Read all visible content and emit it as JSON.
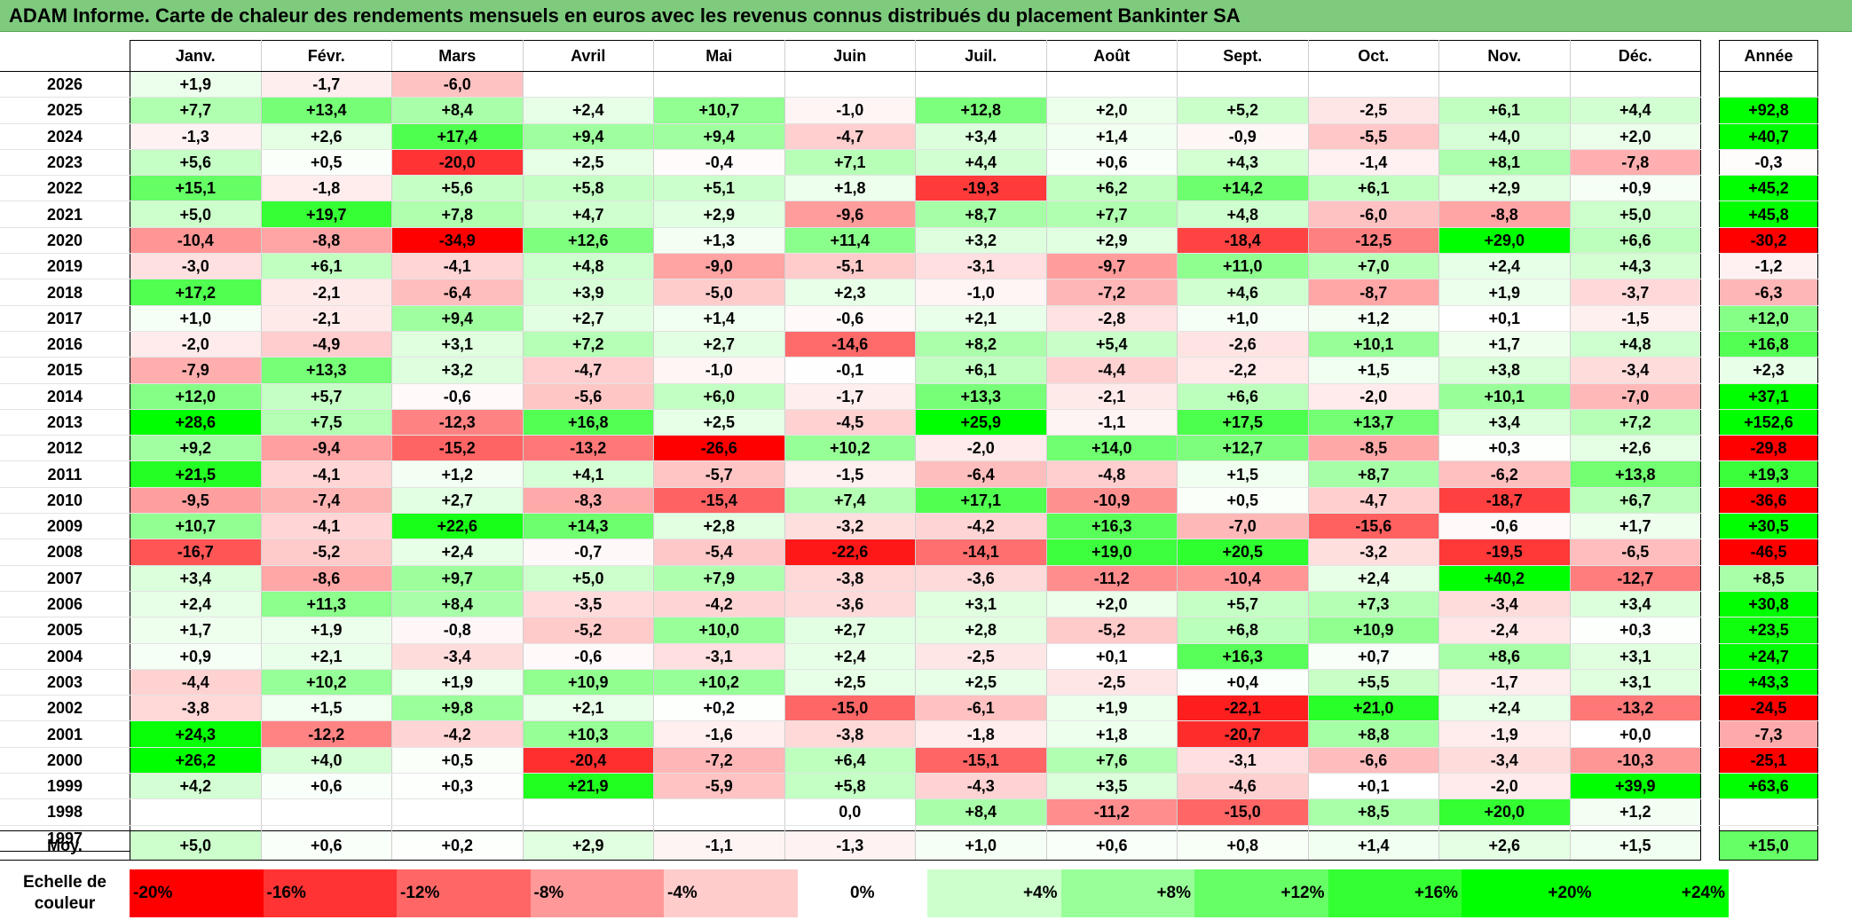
{
  "title": "ADAM Informe. Carte de chaleur des rendements mensuels en euros avec les revenus connus distribués du placement Bankinter SA",
  "chart_data": {
    "type": "heatmap",
    "title": "ADAM Informe. Carte de chaleur des rendements mensuels en euros avec les revenus connus distribués du placement Bankinter SA",
    "months": [
      "Janv.",
      "Févr.",
      "Mars",
      "Avril",
      "Mai",
      "Juin",
      "Juil.",
      "Août",
      "Sept.",
      "Oct.",
      "Nov.",
      "Déc."
    ],
    "annual_header": "Année",
    "rows": [
      {
        "year": "2026",
        "values": [
          "+1,9",
          "-1,7",
          "-6,0",
          "",
          "",
          "",
          "",
          "",
          "",
          "",
          "",
          ""
        ],
        "annual": ""
      },
      {
        "year": "2025",
        "values": [
          "+7,7",
          "+13,4",
          "+8,4",
          "+2,4",
          "+10,7",
          "-1,0",
          "+12,8",
          "+2,0",
          "+5,2",
          "-2,5",
          "+6,1",
          "+4,4"
        ],
        "annual": "+92,8"
      },
      {
        "year": "2024",
        "values": [
          "-1,3",
          "+2,6",
          "+17,4",
          "+9,4",
          "+9,4",
          "-4,7",
          "+3,4",
          "+1,4",
          "-0,9",
          "-5,5",
          "+4,0",
          "+2,0"
        ],
        "annual": "+40,7"
      },
      {
        "year": "2023",
        "values": [
          "+5,6",
          "+0,5",
          "-20,0",
          "+2,5",
          "-0,4",
          "+7,1",
          "+4,4",
          "+0,6",
          "+4,3",
          "-1,4",
          "+8,1",
          "-7,8"
        ],
        "annual": "-0,3"
      },
      {
        "year": "2022",
        "values": [
          "+15,1",
          "-1,8",
          "+5,6",
          "+5,8",
          "+5,1",
          "+1,8",
          "-19,3",
          "+6,2",
          "+14,2",
          "+6,1",
          "+2,9",
          "+0,9"
        ],
        "annual": "+45,2"
      },
      {
        "year": "2021",
        "values": [
          "+5,0",
          "+19,7",
          "+7,8",
          "+4,7",
          "+2,9",
          "-9,6",
          "+8,7",
          "+7,7",
          "+4,8",
          "-6,0",
          "-8,8",
          "+5,0"
        ],
        "annual": "+45,8"
      },
      {
        "year": "2020",
        "values": [
          "-10,4",
          "-8,8",
          "-34,9",
          "+12,6",
          "+1,3",
          "+11,4",
          "+3,2",
          "+2,9",
          "-18,4",
          "-12,5",
          "+29,0",
          "+6,6"
        ],
        "annual": "-30,2"
      },
      {
        "year": "2019",
        "values": [
          "-3,0",
          "+6,1",
          "-4,1",
          "+4,8",
          "-9,0",
          "-5,1",
          "-3,1",
          "-9,7",
          "+11,0",
          "+7,0",
          "+2,4",
          "+4,3"
        ],
        "annual": "-1,2"
      },
      {
        "year": "2018",
        "values": [
          "+17,2",
          "-2,1",
          "-6,4",
          "+3,9",
          "-5,0",
          "+2,3",
          "-1,0",
          "-7,2",
          "+4,6",
          "-8,7",
          "+1,9",
          "-3,7"
        ],
        "annual": "-6,3"
      },
      {
        "year": "2017",
        "values": [
          "+1,0",
          "-2,1",
          "+9,4",
          "+2,7",
          "+1,4",
          "-0,6",
          "+2,1",
          "-2,8",
          "+1,0",
          "+1,2",
          "+0,1",
          "-1,5"
        ],
        "annual": "+12,0"
      },
      {
        "year": "2016",
        "values": [
          "-2,0",
          "-4,9",
          "+3,1",
          "+7,2",
          "+2,7",
          "-14,6",
          "+8,2",
          "+5,4",
          "-2,6",
          "+10,1",
          "+1,7",
          "+4,8"
        ],
        "annual": "+16,8"
      },
      {
        "year": "2015",
        "values": [
          "-7,9",
          "+13,3",
          "+3,2",
          "-4,7",
          "-1,0",
          "-0,1",
          "+6,1",
          "-4,4",
          "-2,2",
          "+1,5",
          "+3,8",
          "-3,4"
        ],
        "annual": "+2,3"
      },
      {
        "year": "2014",
        "values": [
          "+12,0",
          "+5,7",
          "-0,6",
          "-5,6",
          "+6,0",
          "-1,7",
          "+13,3",
          "-2,1",
          "+6,6",
          "-2,0",
          "+10,1",
          "-7,0"
        ],
        "annual": "+37,1"
      },
      {
        "year": "2013",
        "values": [
          "+28,6",
          "+7,5",
          "-12,3",
          "+16,8",
          "+2,5",
          "-4,5",
          "+25,9",
          "-1,1",
          "+17,5",
          "+13,7",
          "+3,4",
          "+7,2"
        ],
        "annual": "+152,6"
      },
      {
        "year": "2012",
        "values": [
          "+9,2",
          "-9,4",
          "-15,2",
          "-13,2",
          "-26,6",
          "+10,2",
          "-2,0",
          "+14,0",
          "+12,7",
          "-8,5",
          "+0,3",
          "+2,6"
        ],
        "annual": "-29,8"
      },
      {
        "year": "2011",
        "values": [
          "+21,5",
          "-4,1",
          "+1,2",
          "+4,1",
          "-5,7",
          "-1,5",
          "-6,4",
          "-4,8",
          "+1,5",
          "+8,7",
          "-6,2",
          "+13,8"
        ],
        "annual": "+19,3"
      },
      {
        "year": "2010",
        "values": [
          "-9,5",
          "-7,4",
          "+2,7",
          "-8,3",
          "-15,4",
          "+7,4",
          "+17,1",
          "-10,9",
          "+0,5",
          "-4,7",
          "-18,7",
          "+6,7"
        ],
        "annual": "-36,6"
      },
      {
        "year": "2009",
        "values": [
          "+10,7",
          "-4,1",
          "+22,6",
          "+14,3",
          "+2,8",
          "-3,2",
          "-4,2",
          "+16,3",
          "-7,0",
          "-15,6",
          "-0,6",
          "+1,7"
        ],
        "annual": "+30,5"
      },
      {
        "year": "2008",
        "values": [
          "-16,7",
          "-5,2",
          "+2,4",
          "-0,7",
          "-5,4",
          "-22,6",
          "-14,1",
          "+19,0",
          "+20,5",
          "-3,2",
          "-19,5",
          "-6,5"
        ],
        "annual": "-46,5"
      },
      {
        "year": "2007",
        "values": [
          "+3,4",
          "-8,6",
          "+9,7",
          "+5,0",
          "+7,9",
          "-3,8",
          "-3,6",
          "-11,2",
          "-10,4",
          "+2,4",
          "+40,2",
          "-12,7"
        ],
        "annual": "+8,5"
      },
      {
        "year": "2006",
        "values": [
          "+2,4",
          "+11,3",
          "+8,4",
          "-3,5",
          "-4,2",
          "-3,6",
          "+3,1",
          "+2,0",
          "+5,7",
          "+7,3",
          "-3,4",
          "+3,4"
        ],
        "annual": "+30,8"
      },
      {
        "year": "2005",
        "values": [
          "+1,7",
          "+1,9",
          "-0,8",
          "-5,2",
          "+10,0",
          "+2,7",
          "+2,8",
          "-5,2",
          "+6,8",
          "+10,9",
          "-2,4",
          "+0,3"
        ],
        "annual": "+23,5"
      },
      {
        "year": "2004",
        "values": [
          "+0,9",
          "+2,1",
          "-3,4",
          "-0,6",
          "-3,1",
          "+2,4",
          "-2,5",
          "+0,1",
          "+16,3",
          "+0,7",
          "+8,6",
          "+3,1"
        ],
        "annual": "+24,7"
      },
      {
        "year": "2003",
        "values": [
          "-4,4",
          "+10,2",
          "+1,9",
          "+10,9",
          "+10,2",
          "+2,5",
          "+2,5",
          "-2,5",
          "+0,4",
          "+5,5",
          "-1,7",
          "+3,1"
        ],
        "annual": "+43,3"
      },
      {
        "year": "2002",
        "values": [
          "-3,8",
          "+1,5",
          "+9,8",
          "+2,1",
          "+0,2",
          "-15,0",
          "-6,1",
          "+1,9",
          "-22,1",
          "+21,0",
          "+2,4",
          "-13,2"
        ],
        "annual": "-24,5"
      },
      {
        "year": "2001",
        "values": [
          "+24,3",
          "-12,2",
          "-4,2",
          "+10,3",
          "-1,6",
          "-3,8",
          "-1,8",
          "+1,8",
          "-20,7",
          "+8,8",
          "-1,9",
          "+0,0"
        ],
        "annual": "-7,3"
      },
      {
        "year": "2000",
        "values": [
          "+26,2",
          "+4,0",
          "+0,5",
          "-20,4",
          "-7,2",
          "+6,4",
          "-15,1",
          "+7,6",
          "-3,1",
          "-6,6",
          "-3,4",
          "-10,3"
        ],
        "annual": "-25,1"
      },
      {
        "year": "1999",
        "values": [
          "+4,2",
          "+0,6",
          "+0,3",
          "+21,9",
          "-5,9",
          "+5,8",
          "-4,3",
          "+3,5",
          "-4,6",
          "+0,1",
          "-2,0",
          "+39,9"
        ],
        "annual": "+63,6"
      },
      {
        "year": "1998",
        "values": [
          "",
          "",
          "",
          "",
          "",
          "0,0",
          "+8,4",
          "-11,2",
          "-15,0",
          "+8,5",
          "+20,0",
          "+1,2"
        ],
        "annual": ""
      },
      {
        "year": "1997",
        "values": [
          "",
          "",
          "",
          "",
          "",
          "",
          "",
          "",
          "",
          "",
          "",
          ""
        ],
        "annual": ""
      }
    ],
    "average": {
      "label": "Moy.",
      "values": [
        "+5,0",
        "+0,6",
        "+0,2",
        "+2,9",
        "-1,1",
        "-1,3",
        "+1,0",
        "+0,6",
        "+0,8",
        "+1,4",
        "+2,6",
        "+1,5"
      ],
      "annual": "+15,0"
    },
    "color_scale": {
      "label": "Echelle de couleur",
      "stops": [
        "-20%",
        "-16%",
        "-12%",
        "-8%",
        "-4%",
        "0%",
        "+4%",
        "+8%",
        "+12%",
        "+16%",
        "+20%",
        "+24%"
      ],
      "negative_color": "#ff0000",
      "positive_color": "#00ff00",
      "neutral_color": "#ffffff"
    }
  }
}
